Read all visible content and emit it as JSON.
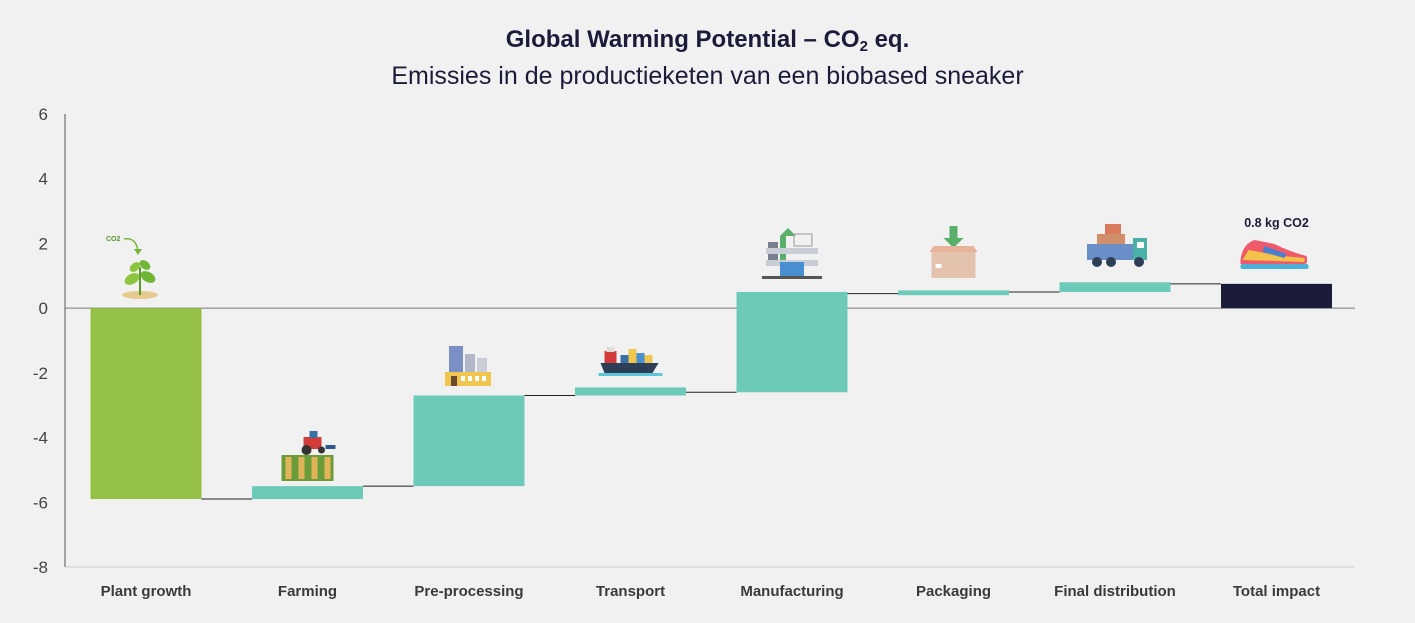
{
  "chart_data": {
    "type": "bar",
    "subtype": "waterfall",
    "title_main": "Global Warming Potential – CO",
    "title_sub": "2",
    "title_suffix": " eq.",
    "subtitle": "Emissies in de productieketen van een biobased sneaker",
    "ylim": [
      -8,
      6
    ],
    "yticks": [
      6,
      4,
      2,
      0,
      -2,
      -4,
      -6,
      -8
    ],
    "grid": false,
    "legend": "none",
    "categories": [
      "Plant growth",
      "Farming",
      "Pre-processing",
      "Transport",
      "Manufacturing",
      "Packaging",
      "Final distribution",
      "Total impact"
    ],
    "bars": [
      {
        "category": "Plant growth",
        "start": 0,
        "end": -5.9,
        "color": "#94c146",
        "icon": "plant-co2-icon"
      },
      {
        "category": "Farming",
        "start": -5.9,
        "end": -5.5,
        "color": "#6ecab8",
        "icon": "tractor-field-icon"
      },
      {
        "category": "Pre-processing",
        "start": -5.5,
        "end": -2.7,
        "color": "#6ecab8",
        "icon": "factory-icon"
      },
      {
        "category": "Transport",
        "start": -2.7,
        "end": -2.45,
        "color": "#6ecab8",
        "icon": "cargo-ship-icon"
      },
      {
        "category": "Manufacturing",
        "start": -2.6,
        "end": 0.5,
        "color": "#6ecab8",
        "icon": "manufacturing-plant-icon"
      },
      {
        "category": "Packaging",
        "start": 0.4,
        "end": 0.55,
        "color": "#6ecab8",
        "icon": "package-box-icon"
      },
      {
        "category": "Final distribution",
        "start": 0.5,
        "end": 0.8,
        "color": "#6ecab8",
        "icon": "delivery-truck-icon"
      },
      {
        "category": "Total impact",
        "start": 0,
        "end": 0.75,
        "color": "#1b1b3a",
        "icon": "sneaker-icon"
      }
    ],
    "connector_levels": [
      -5.9,
      -5.5,
      -2.7,
      -2.6,
      0.45,
      0.5,
      0.75
    ],
    "annotations": {
      "total_label": "0.8 kg CO2",
      "co2_tag": "CO2"
    }
  }
}
